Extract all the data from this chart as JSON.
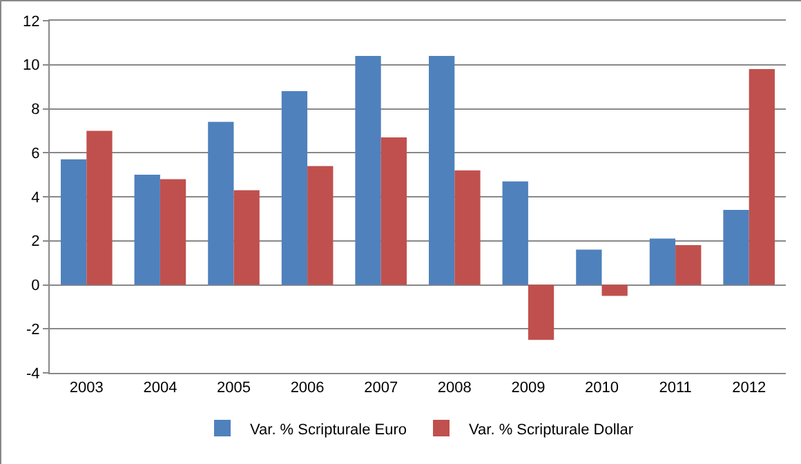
{
  "chart_data": {
    "type": "bar",
    "categories": [
      "2003",
      "2004",
      "2005",
      "2006",
      "2007",
      "2008",
      "2009",
      "2010",
      "2011",
      "2012"
    ],
    "series": [
      {
        "name": "Var. % Scripturale Euro",
        "color": "#4f81bd",
        "values": [
          5.7,
          5.0,
          7.4,
          8.8,
          10.4,
          10.4,
          4.7,
          1.6,
          2.1,
          3.4
        ]
      },
      {
        "name": "Var. % Scripturale Dollar",
        "color": "#c0504d",
        "values": [
          7.0,
          4.8,
          4.3,
          5.4,
          6.7,
          5.2,
          -2.5,
          -0.5,
          1.8,
          9.8
        ]
      }
    ],
    "ylim": [
      -4,
      12
    ],
    "yticks": [
      -4,
      -2,
      0,
      2,
      4,
      6,
      8,
      10,
      12
    ],
    "grid": "y",
    "legend": "bottom"
  }
}
